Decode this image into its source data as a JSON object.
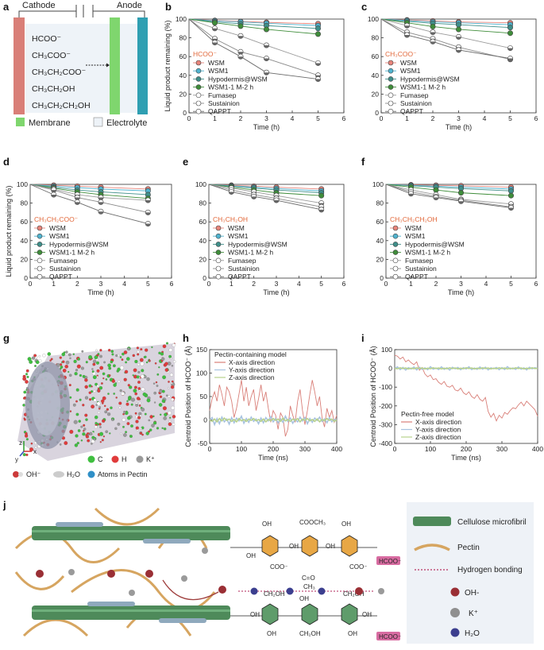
{
  "figure": {
    "panel_labels": [
      "a",
      "b",
      "c",
      "d",
      "e",
      "f",
      "g",
      "h",
      "i",
      "j"
    ]
  },
  "schematic_a": {
    "cathode_label": "Cathode",
    "anode_label": "Anode",
    "products": [
      "HCOO⁻",
      "CH₃COO⁻",
      "CH₃CH₂COO⁻",
      "CH₃CH₂OH",
      "CH₃CH₂CH₂OH"
    ],
    "legend_membrane": "Membrane",
    "legend_electrolyte": "Electrolyte",
    "colors": {
      "cathode": "#d97f78",
      "anode": "#2f9fb2",
      "membrane": "#7fd66e",
      "electrolyte": "#eef3f8"
    }
  },
  "chart_data": [
    {
      "panel": "b",
      "type": "line",
      "legend_title": "HCOO⁻",
      "xlabel": "Time (h)",
      "ylabel": "Liquid product remaining (%)",
      "xlim": [
        0,
        6
      ],
      "ylim": [
        0,
        100
      ],
      "x": [
        0,
        1,
        2,
        3,
        5
      ],
      "series": [
        {
          "name": "WSM",
          "values": [
            100,
            98.5,
            97.5,
            96.5,
            95
          ]
        },
        {
          "name": "WSM1",
          "values": [
            100,
            98,
            97,
            95.5,
            93
          ]
        },
        {
          "name": "Hypodermis@WSM",
          "values": [
            100,
            97,
            95,
            93,
            90
          ]
        },
        {
          "name": "WSM1-1 M-2 h",
          "values": [
            100,
            96,
            92.5,
            89,
            84
          ]
        },
        {
          "name": "Fumasep",
          "values": [
            100,
            90,
            82,
            72,
            53
          ]
        },
        {
          "name": "Sustainion",
          "values": [
            100,
            79,
            65,
            58,
            40
          ]
        },
        {
          "name": "QAPPT",
          "values": [
            100,
            75,
            60,
            43,
            36
          ]
        }
      ]
    },
    {
      "panel": "c",
      "type": "line",
      "legend_title": "CH₃COO⁻",
      "xlabel": "Time (h)",
      "ylabel": "",
      "xlim": [
        0,
        6
      ],
      "ylim": [
        0,
        100
      ],
      "x": [
        0,
        1,
        2,
        3,
        5
      ],
      "series": [
        {
          "name": "WSM",
          "values": [
            100,
            99,
            98,
            97,
            96
          ]
        },
        {
          "name": "WSM1",
          "values": [
            100,
            98.5,
            97,
            96,
            94
          ]
        },
        {
          "name": "Hypodermis@WSM",
          "values": [
            100,
            97.5,
            95.5,
            94,
            91
          ]
        },
        {
          "name": "WSM1-1 M-2 h",
          "values": [
            100,
            96,
            92,
            89,
            85
          ]
        },
        {
          "name": "Fumasep",
          "values": [
            100,
            93,
            86,
            81,
            69
          ]
        },
        {
          "name": "Sustainion",
          "values": [
            100,
            86,
            79,
            70,
            57
          ]
        },
        {
          "name": "QAPPT",
          "values": [
            100,
            83,
            76,
            67,
            58
          ]
        }
      ]
    },
    {
      "panel": "d",
      "type": "line",
      "legend_title": "CH₃CH₂COO⁻",
      "xlabel": "Time (h)",
      "ylabel": "Liquid product remaining (%)",
      "xlim": [
        0,
        6
      ],
      "ylim": [
        0,
        100
      ],
      "x": [
        0,
        1,
        2,
        3,
        5
      ],
      "series": [
        {
          "name": "WSM",
          "values": [
            100,
            99,
            98,
            97,
            95
          ]
        },
        {
          "name": "WSM1",
          "values": [
            100,
            98,
            96.5,
            95,
            93
          ]
        },
        {
          "name": "Hypodermis@WSM",
          "values": [
            100,
            97,
            94,
            92,
            89
          ]
        },
        {
          "name": "WSM1-1 M-2 h",
          "values": [
            100,
            96,
            92,
            89,
            85
          ]
        },
        {
          "name": "Fumasep",
          "values": [
            100,
            95,
            89,
            86,
            83
          ]
        },
        {
          "name": "Sustainion",
          "values": [
            100,
            94,
            86,
            81,
            70
          ]
        },
        {
          "name": "QAPPT",
          "values": [
            100,
            89,
            81,
            71,
            58
          ]
        }
      ]
    },
    {
      "panel": "e",
      "type": "line",
      "legend_title": "CH₃CH₂OH",
      "xlabel": "Time (h)",
      "ylabel": "",
      "xlim": [
        0,
        6
      ],
      "ylim": [
        0,
        100
      ],
      "x": [
        0,
        1,
        2,
        3,
        5
      ],
      "series": [
        {
          "name": "WSM",
          "values": [
            100,
            99,
            98,
            97,
            95
          ]
        },
        {
          "name": "WSM1",
          "values": [
            100,
            98.5,
            97,
            95.5,
            93
          ]
        },
        {
          "name": "Hypodermis@WSM",
          "values": [
            100,
            98,
            96,
            94,
            91
          ]
        },
        {
          "name": "WSM1-1 M-2 h",
          "values": [
            100,
            97,
            94,
            91,
            88
          ]
        },
        {
          "name": "Fumasep",
          "values": [
            100,
            96,
            92,
            88,
            80
          ]
        },
        {
          "name": "Sustainion",
          "values": [
            100,
            94,
            89,
            85,
            76
          ]
        },
        {
          "name": "QAPPT",
          "values": [
            100,
            92,
            87,
            83,
            73
          ]
        }
      ]
    },
    {
      "panel": "f",
      "type": "line",
      "legend_title": "CH₃CH₂CH₂OH",
      "xlabel": "Time (h)",
      "ylabel": "",
      "xlim": [
        0,
        6
      ],
      "ylim": [
        0,
        100
      ],
      "x": [
        0,
        1,
        2,
        3,
        5
      ],
      "series": [
        {
          "name": "WSM",
          "values": [
            100,
            99.5,
            99,
            98.5,
            97
          ]
        },
        {
          "name": "WSM1",
          "values": [
            100,
            99,
            98,
            97,
            95
          ]
        },
        {
          "name": "Hypodermis@WSM",
          "values": [
            100,
            98.5,
            97,
            95.5,
            93
          ]
        },
        {
          "name": "WSM1-1 M-2 h",
          "values": [
            100,
            97,
            94,
            91,
            88
          ]
        },
        {
          "name": "Fumasep",
          "values": [
            100,
            94,
            89,
            84,
            79
          ]
        },
        {
          "name": "Sustainion",
          "values": [
            100,
            92,
            87,
            83,
            76
          ]
        },
        {
          "name": "QAPPT",
          "values": [
            100,
            90,
            86,
            82,
            75
          ]
        }
      ]
    },
    {
      "panel": "h",
      "type": "line",
      "legend_title": "Pectin-containing model",
      "xlabel": "Time (ns)",
      "ylabel": "Centroid Position of HCOO⁻ (Å)",
      "xlim": [
        0,
        400
      ],
      "ylim": [
        -50,
        150
      ],
      "yticks": [
        -50,
        0,
        50,
        100,
        150
      ],
      "series": [
        {
          "name": "X-axis direction",
          "values": [
            20,
            45,
            60,
            40,
            75,
            55,
            30,
            70,
            60,
            40,
            5,
            25,
            55,
            85,
            40,
            70,
            30,
            50,
            65,
            20,
            45,
            75,
            40,
            60,
            25,
            -5,
            20,
            10,
            -20,
            15,
            5,
            -35,
            -20,
            30,
            10,
            -5,
            40,
            65,
            20,
            -10,
            20,
            55,
            85,
            60,
            30,
            50,
            5,
            -15,
            25,
            5,
            20,
            -5,
            10
          ]
        },
        {
          "name": "Y-axis direction",
          "values": [
            0,
            5,
            -10,
            3,
            -8,
            6,
            -4,
            2,
            -9,
            5,
            -6,
            4,
            -2,
            8,
            -7,
            3,
            -5,
            6,
            -3,
            2,
            -8,
            4,
            -6,
            5,
            -2,
            7,
            -4,
            3,
            -6,
            2,
            -5,
            8,
            -3,
            4,
            -7,
            1,
            -4,
            6,
            -2,
            5,
            -8,
            3,
            -5,
            4,
            -1,
            6,
            -3,
            2,
            -6,
            5,
            -4,
            1,
            0
          ]
        },
        {
          "name": "Z-axis direction",
          "values": [
            0,
            -3,
            2,
            -4,
            3,
            -2,
            4,
            -1,
            2,
            -3,
            1,
            -4,
            3,
            -2,
            1,
            -3,
            2,
            -1,
            3,
            -2,
            1,
            -3,
            2,
            -4,
            1,
            -2,
            3,
            -1,
            2,
            -3,
            4,
            -2,
            1,
            -3,
            2,
            -1,
            3,
            -4,
            2,
            -1,
            3,
            -2,
            1,
            -3,
            2,
            -4,
            1,
            -2,
            3,
            -1,
            2,
            -3,
            0
          ]
        }
      ]
    },
    {
      "panel": "i",
      "type": "line",
      "legend_title": "Pectin-free model",
      "xlabel": "Time (ns)",
      "ylabel": "Centroid Position of HCOO⁻ (Å)",
      "xlim": [
        0,
        400
      ],
      "ylim": [
        -400,
        100
      ],
      "yticks": [
        -400,
        -300,
        -200,
        -100,
        0,
        100
      ],
      "series": [
        {
          "name": "X-axis direction",
          "values": [
            70,
            65,
            50,
            60,
            35,
            45,
            30,
            20,
            35,
            -10,
            5,
            -30,
            -45,
            -35,
            -60,
            -55,
            -75,
            -85,
            -70,
            -95,
            -100,
            -90,
            -115,
            -120,
            -105,
            -130,
            -140,
            -125,
            -150,
            -160,
            -140,
            -165,
            -175,
            -155,
            -230,
            -260,
            -240,
            -280,
            -250,
            -265,
            -235,
            -245,
            -225,
            -210,
            -215,
            -195,
            -180,
            -200,
            -175,
            -190,
            -205,
            -220,
            -255
          ]
        },
        {
          "name": "Y-axis direction",
          "values": [
            0,
            8,
            -6,
            5,
            -9,
            4,
            -3,
            7,
            -8,
            6,
            -5,
            3,
            -7,
            9,
            -4,
            2,
            -6,
            8,
            -5,
            3,
            -9,
            6,
            -2,
            5,
            -7,
            4,
            -3,
            8,
            -6,
            2,
            -5,
            7,
            -4,
            6,
            -8,
            3,
            -2,
            5,
            -7,
            4,
            -6,
            9,
            -3,
            2,
            -5,
            7,
            -4,
            3,
            -8,
            6,
            -2,
            4,
            0
          ]
        },
        {
          "name": "Z-axis direction",
          "values": [
            0,
            -2,
            3,
            -1,
            2,
            -3,
            1,
            -2,
            3,
            -1,
            2,
            -3,
            1,
            -2,
            3,
            -1,
            2,
            -3,
            1,
            -2,
            3,
            -1,
            2,
            -3,
            1,
            -2,
            3,
            -1,
            2,
            -3,
            1,
            -2,
            3,
            -1,
            2,
            -3,
            1,
            -2,
            3,
            -1,
            2,
            -3,
            1,
            -2,
            3,
            -1,
            2,
            -3,
            1,
            -2,
            3,
            -1,
            0
          ]
        }
      ]
    }
  ],
  "series_colors": [
    "#e8847a",
    "#4fb3cf",
    "#3f8f8a",
    "#3f8d3a",
    "#9a9a9a",
    "#8a8a8a",
    "#6a6a6a"
  ],
  "md_colors": [
    "#d97f78",
    "#a8c3e0",
    "#b7d18c"
  ],
  "panel_g": {
    "legend": [
      {
        "label": "C",
        "color": "#3fbf3f"
      },
      {
        "label": "H",
        "color": "#e03b3b"
      },
      {
        "label": "K⁺",
        "color": "#9a9a9a"
      }
    ],
    "legend2": [
      "OH⁻",
      "H₂O",
      "Atoms in Pectin"
    ],
    "axes": {
      "z": "z",
      "x": "x",
      "y": "y"
    }
  },
  "panel_j": {
    "legend": [
      "Cellulose microfibril",
      "Pectin",
      "Hydrogen bonding",
      "OH-",
      "K⁺",
      "H₂O"
    ],
    "hcoo_label": "HCOO⁻",
    "top_chem": {
      "groups": [
        "OH",
        "COOCH₃",
        "OH",
        "OH",
        "OH",
        "OH",
        "COO⁻",
        "COO⁻",
        "C=O",
        "CH₃"
      ]
    },
    "bottom_chem": {
      "groups": [
        "CH₂OH",
        "CH₂OH",
        "OH",
        "OH",
        "OH",
        "OH",
        "OH",
        "CH₂OH"
      ]
    }
  }
}
